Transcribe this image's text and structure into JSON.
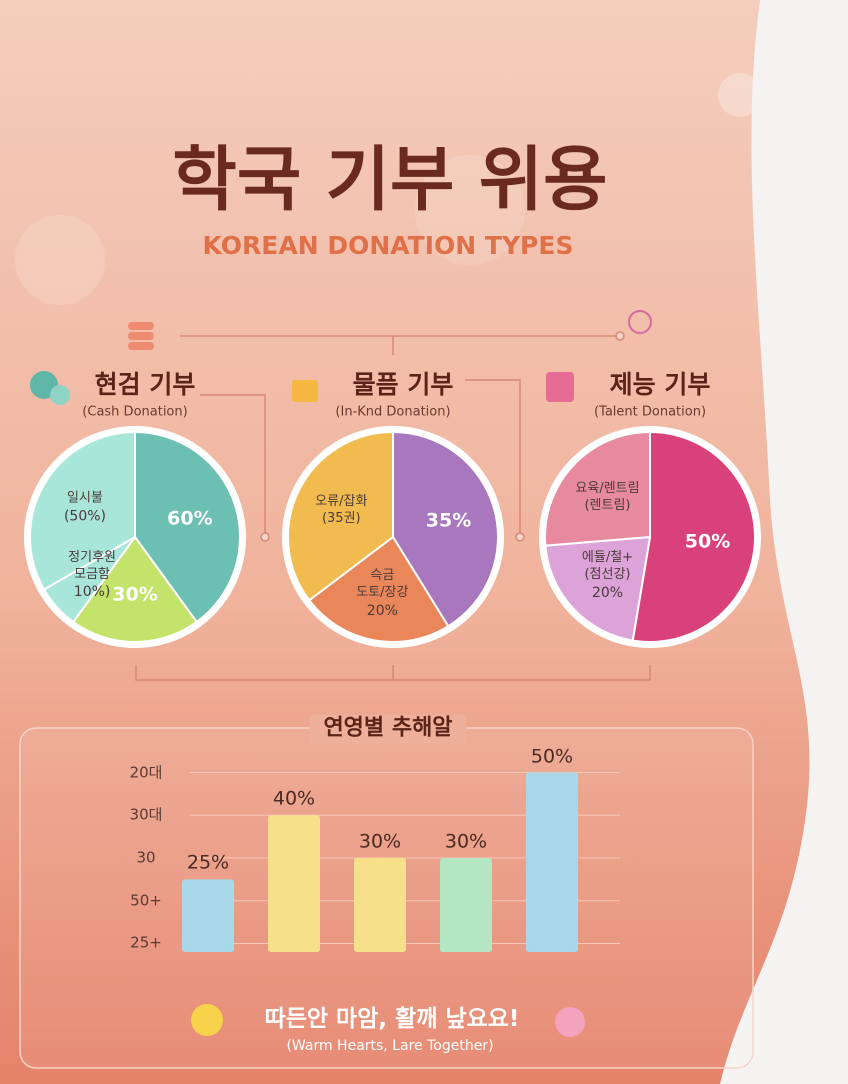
{
  "header": {
    "title": "학국 기부 위용",
    "subtitle": "KOREAN DONATION TYPES"
  },
  "chart_data": [
    {
      "type": "pie",
      "title": "현검 기부",
      "subtitle": "(Cash Donation)",
      "categories": [
        null,
        null,
        "정기후원\n모금함",
        "일시불"
      ],
      "values": [
        60,
        30,
        10,
        50
      ],
      "value_labels": [
        "60%",
        "30%",
        "10%)",
        "(50%)"
      ],
      "colors": [
        "#6cbfb3",
        "#c3e36a",
        "#a9e6da",
        "#a9e6da"
      ]
    },
    {
      "type": "pie",
      "title": "물픔 기부",
      "subtitle": "(In-Knd Donation)",
      "categories": [
        null,
        "슥금\n도토/장강",
        "오류/잡화\n(35권)"
      ],
      "values": [
        35,
        20,
        30
      ],
      "value_labels": [
        "35%",
        "20%",
        null
      ],
      "colors": [
        "#a877bd",
        "#e9875a",
        "#f2bb4f"
      ]
    },
    {
      "type": "pie",
      "title": "제능 기부",
      "subtitle": "(Talent Donation)",
      "categories": [
        null,
        "에듈/철+\n(점선강)",
        "요육/렌트림\n(렌트림)"
      ],
      "values": [
        50,
        20,
        25
      ],
      "value_labels": [
        "50%",
        "20%",
        null
      ],
      "colors": [
        "#d9417a",
        "#dca3d8",
        "#e78aa0"
      ]
    },
    {
      "type": "bar",
      "title": "연영별 추해알",
      "values": [
        25,
        40,
        30,
        30,
        50
      ],
      "value_labels": [
        "25%",
        "40%",
        "30%",
        "30%",
        "50%"
      ],
      "colors": [
        "#a8d8ea",
        "#f7e08a",
        "#f7e08a",
        "#b5e6c3",
        "#a8d8ea"
      ],
      "ylim": [
        8,
        52
      ],
      "yticks": [
        {
          "value": 50,
          "label": "20대"
        },
        {
          "value": 40,
          "label": "30대"
        },
        30,
        {
          "value": 20,
          "label": "50+"
        },
        {
          "value": 10,
          "label": "25+"
        }
      ],
      "grid": true
    }
  ],
  "footer": {
    "title": "따든안 마암, 활깨 낲요요!",
    "subtitle": "(Warm Hearts, Lare Together)"
  }
}
